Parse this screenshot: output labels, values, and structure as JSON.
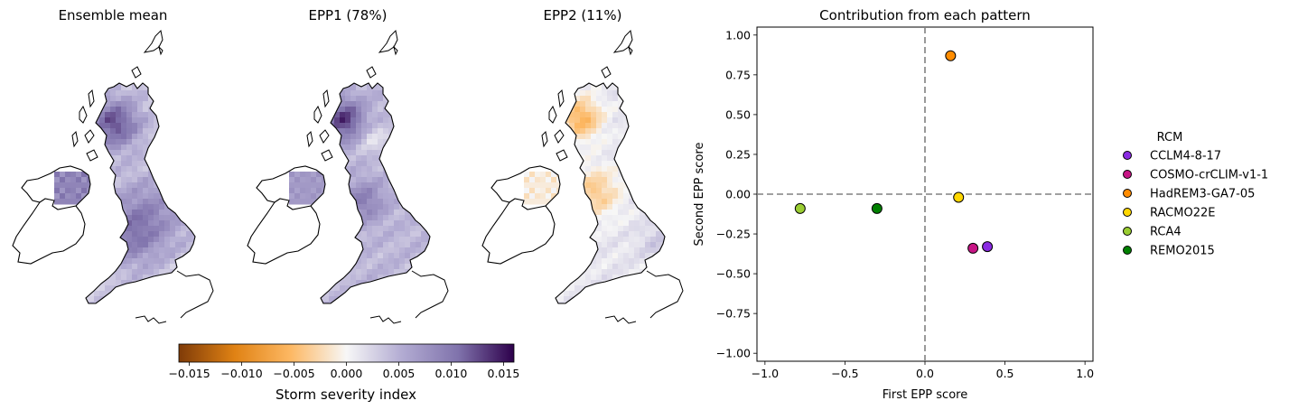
{
  "maps": [
    {
      "title": "Ensemble mean",
      "mode": "mean"
    },
    {
      "title": "EPP1 (78%)",
      "mode": "epp1"
    },
    {
      "title": "EPP2 (11%)",
      "mode": "epp2"
    }
  ],
  "colorbar": {
    "label": "Storm severity index",
    "min": -0.016,
    "max": 0.016,
    "ticks": [
      "-0.015",
      "-0.010",
      "-0.005",
      "0.000",
      "0.005",
      "0.010",
      "0.015"
    ],
    "tick_values": [
      -0.015,
      -0.01,
      -0.005,
      0.0,
      0.005,
      0.01,
      0.015
    ],
    "colors": [
      "#7f3b08",
      "#e08214",
      "#fdb863",
      "#f7f7f7",
      "#b2abd2",
      "#8073ac",
      "#2d004b"
    ]
  },
  "chart_data": {
    "type": "scatter",
    "title": "Contribution from each pattern",
    "xlabel": "First EPP score",
    "ylabel": "Second EPP score",
    "xlim": [
      -1.05,
      1.05
    ],
    "ylim": [
      -1.05,
      1.05
    ],
    "xticks": [
      -1.0,
      -0.5,
      0.0,
      0.5,
      1.0
    ],
    "xtick_labels": [
      "−1.0",
      "−0.5",
      "0.0",
      "0.5",
      "1.0"
    ],
    "yticks": [
      1.0,
      0.75,
      0.5,
      0.25,
      0.0,
      -0.25,
      -0.5,
      -0.75,
      -1.0
    ],
    "ytick_labels": [
      "1.00",
      "0.75",
      "0.50",
      "0.25",
      "0.00",
      "−0.25",
      "−0.50",
      "−0.75",
      "−1.00"
    ],
    "grid": false,
    "reference_lines": {
      "x": 0,
      "y": 0,
      "style": "dashed",
      "color": "#808080"
    },
    "legend": {
      "title": "RCM",
      "placement": "outside-right"
    },
    "series": [
      {
        "name": "CCLM4-8-17",
        "color": "#8a2be2",
        "x": 0.39,
        "y": -0.33
      },
      {
        "name": "COSMO-crCLIM-v1-1",
        "color": "#c71585",
        "x": 0.3,
        "y": -0.34
      },
      {
        "name": "HadREM3-GA7-05",
        "color": "#ff8c00",
        "x": 0.16,
        "y": 0.87
      },
      {
        "name": "RACMO22E",
        "color": "#ffd700",
        "x": 0.21,
        "y": -0.02
      },
      {
        "name": "RCA4",
        "color": "#9acd32",
        "x": -0.78,
        "y": -0.09
      },
      {
        "name": "REMO2015",
        "color": "#008000",
        "x": -0.3,
        "y": -0.09
      }
    ]
  }
}
